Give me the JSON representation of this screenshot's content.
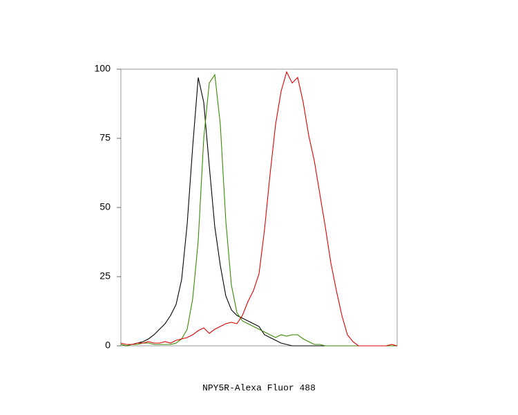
{
  "chart_data": {
    "type": "line",
    "xlabel": "NPY5R-Alexa Fluor 488",
    "ylim": [
      0,
      100
    ],
    "yticks": [
      0,
      25,
      50,
      75,
      100
    ],
    "series": [
      {
        "color": "#000000",
        "values": [
          0.5,
          0,
          0.5,
          1,
          1.5,
          2.5,
          4,
          6,
          8,
          11,
          15,
          24,
          44,
          72,
          97,
          88,
          65,
          43,
          29,
          18,
          13,
          11,
          10,
          9,
          8,
          7,
          4,
          3,
          2,
          1,
          0.5,
          0,
          0,
          0,
          0,
          0,
          0,
          0,
          0,
          0,
          0,
          0,
          0,
          0,
          0,
          0,
          0,
          0,
          0,
          0,
          0
        ]
      },
      {
        "color": "#3a8a00",
        "values": [
          0.5,
          0,
          0.5,
          0.5,
          1,
          1,
          0.5,
          0.5,
          0.5,
          0.5,
          1,
          2.5,
          6,
          17,
          38,
          75,
          95,
          98,
          80,
          45,
          22,
          12,
          9,
          8,
          7,
          6,
          5,
          4,
          3,
          4,
          3.5,
          4,
          4,
          2.5,
          1.5,
          0.5,
          0.5,
          0,
          0,
          0,
          0,
          0,
          0,
          0,
          0,
          0,
          0,
          0,
          0,
          0,
          0
        ]
      },
      {
        "color": "#dd0000",
        "values": [
          1,
          0.5,
          0.5,
          1,
          1,
          1.5,
          1,
          1,
          1.5,
          1,
          2,
          2.5,
          3,
          4,
          5.5,
          6.5,
          4.5,
          6,
          7,
          8,
          8.5,
          8,
          11,
          16,
          20,
          26,
          42,
          62,
          80,
          92,
          99,
          95,
          97,
          88,
          76,
          67,
          55,
          43,
          30,
          20,
          11,
          4,
          1.5,
          0,
          0,
          0,
          0,
          0,
          0,
          0.5,
          0
        ]
      }
    ]
  }
}
